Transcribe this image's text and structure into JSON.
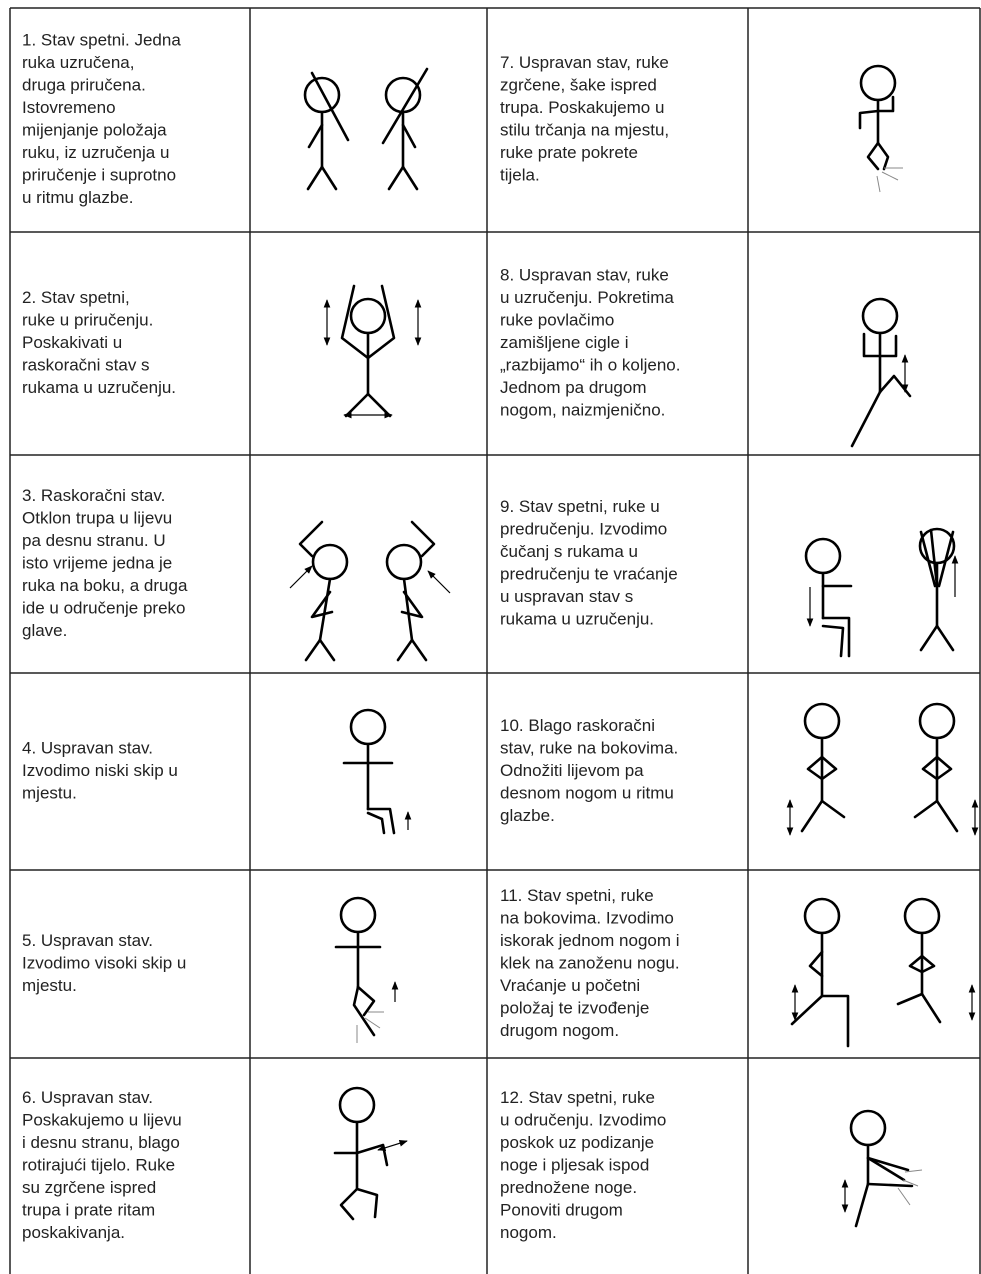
{
  "table": {
    "rows": [
      {
        "left": [
          "1. Stav spetni. Jedna",
          "ruka uzručena,",
          "druga priručena.",
          "Istovremeno",
          "mijenjanje položaja",
          "ruku, iz uzručenja u",
          "priručenje i suprotno",
          "u ritmu glazbe."
        ],
        "right": [
          "7. Uspravan stav, ruke",
          "zgrčene, šake ispred",
          "trupa. Poskakujemo u",
          "stilu trčanja na mjestu,",
          "ruke prate pokrete",
          "tijela."
        ]
      },
      {
        "left": [
          "2. Stav spetni,",
          "ruke u priručenju.",
          "Poskakivati u",
          "raskoračni stav s",
          "rukama u uzručenju."
        ],
        "right": [
          "8. Uspravan stav, ruke",
          "u uzručenju. Pokretima",
          "ruke povlačimo",
          "zamišljene cigle i",
          "„razbijamo“ ih o koljeno.",
          "Jednom pa drugom",
          "nogom, naizmjenično."
        ]
      },
      {
        "left": [
          "3. Raskoračni stav.",
          "Otklon trupa u lijevu",
          "pa desnu stranu. U",
          "isto vrijeme jedna je",
          "ruka na boku, a druga",
          "ide u odručenje preko",
          "glave."
        ],
        "right": [
          "9. Stav spetni, ruke u",
          "predručenju. Izvodimo",
          "čučanj s rukama u",
          "predručenju te vraćanje",
          "u uspravan stav s",
          "rukama u uzručenju."
        ]
      },
      {
        "left": [
          "4. Uspravan stav.",
          "Izvodimo niski skip u",
          "mjestu."
        ],
        "right": [
          "10. Blago raskoračni",
          "stav, ruke na bokovima.",
          "Odnožiti lijevom pa",
          "desnom nogom u ritmu",
          "glazbe."
        ]
      },
      {
        "left": [
          "5. Uspravan stav.",
          "Izvodimo visoki skip u",
          "mjestu."
        ],
        "right": [
          "11. Stav spetni, ruke",
          "na bokovima. Izvodimo",
          "iskorak jednom nogom i",
          "klek na zanoženu nogu.",
          "Vraćanje u početni",
          "položaj te izvođenje",
          "drugom nogom."
        ]
      },
      {
        "left": [
          "6. Uspravan stav.",
          "Poskakujemo u lijevu",
          "i desnu stranu, blago",
          "rotirajući tijelo. Ruke",
          "su zgrčene ispred",
          "trupa i prate ritam",
          "poskakivanja."
        ],
        "right": [
          "12. Stav spetni, ruke",
          "u odručenju. Izvodimo",
          "poskok uz podizanje",
          "noge i pljesak ispod",
          "prednožene noge.",
          "Ponoviti drugom",
          "nogom."
        ]
      }
    ]
  }
}
